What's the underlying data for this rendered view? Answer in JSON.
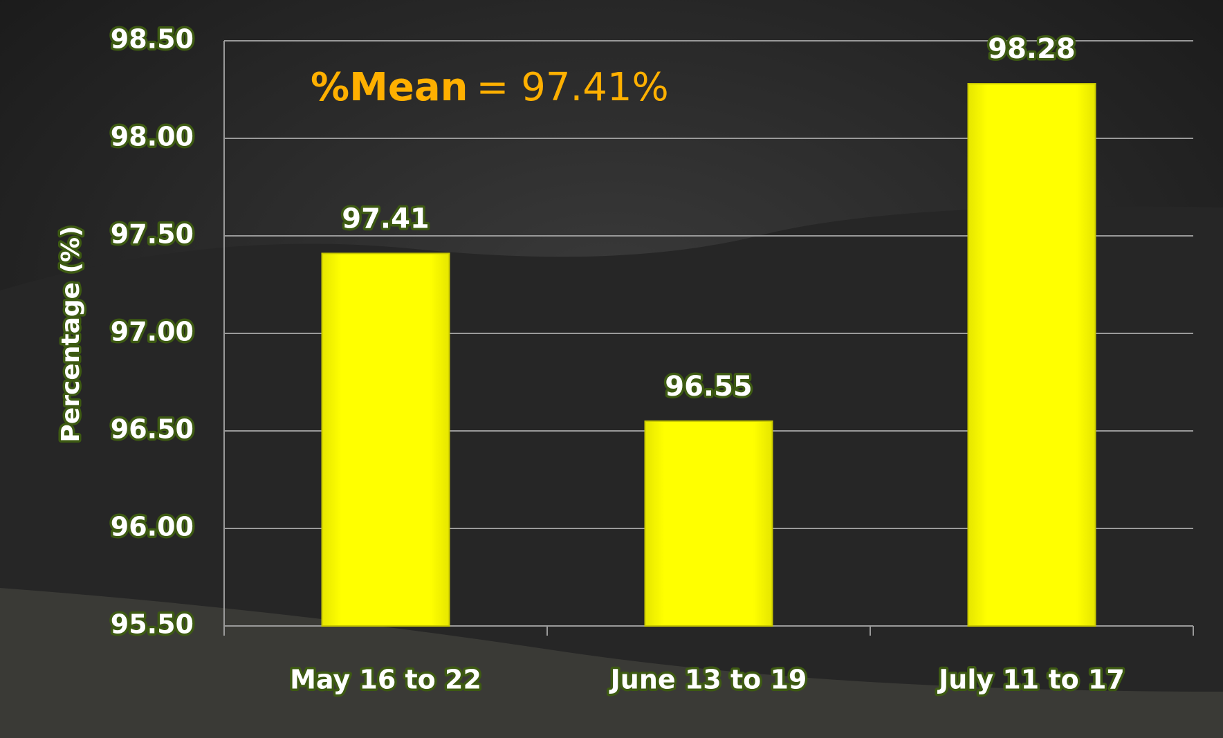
{
  "chart_data": {
    "type": "bar",
    "categories": [
      "May 16 to 22",
      "June 13 to 19",
      "July 11 to 17"
    ],
    "values": [
      97.41,
      96.55,
      98.28
    ],
    "color": "#ffff00",
    "y_label": "Percentage (%)",
    "annotation": {
      "label": "%Mean",
      "text": "= 97.41%"
    },
    "ylim": [
      95.5,
      98.5
    ],
    "yticks": [
      {
        "value": 95.5,
        "label": "95.50"
      },
      {
        "value": 96,
        "label": "96.00"
      },
      {
        "value": 96.5,
        "label": "96.50"
      },
      {
        "value": 97,
        "label": "97.00"
      },
      {
        "value": 97.5,
        "label": "97.50"
      },
      {
        "value": 98,
        "label": "98.00"
      },
      {
        "value": 98.5,
        "label": "98.50"
      }
    ],
    "grid": true
  }
}
